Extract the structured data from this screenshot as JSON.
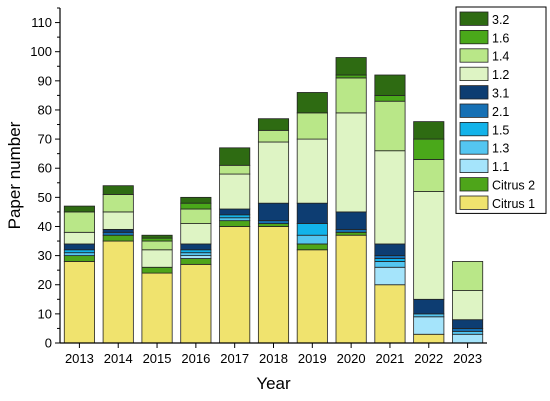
{
  "chart_data": {
    "type": "bar",
    "stacked": true,
    "categories": [
      "2013",
      "2014",
      "2015",
      "2016",
      "2017",
      "2018",
      "2019",
      "2020",
      "2021",
      "2022",
      "2023"
    ],
    "xlabel": "Year",
    "ylabel": "Paper number",
    "ylim": [
      0,
      115
    ],
    "yticks": [
      0,
      10,
      20,
      30,
      40,
      50,
      60,
      70,
      80,
      90,
      100,
      110
    ],
    "grid": false,
    "legend_position": "top-right",
    "series": [
      {
        "name": "Citrus 1",
        "color": "#f0e36e",
        "values": [
          28,
          35,
          24,
          27,
          40,
          40,
          32,
          37,
          20,
          3,
          0
        ]
      },
      {
        "name": "Citrus 2",
        "color": "#4ea51a",
        "values": [
          2,
          2,
          2,
          2,
          2,
          1,
          2,
          1,
          0,
          0,
          0
        ]
      },
      {
        "name": "1.1",
        "color": "#a5e4fb",
        "values": [
          0,
          0,
          0,
          1,
          0,
          0,
          0,
          0,
          6,
          6,
          3
        ]
      },
      {
        "name": "1.3",
        "color": "#54c6f1",
        "values": [
          1,
          0,
          0,
          1,
          1,
          0,
          3,
          0,
          2,
          1,
          1
        ]
      },
      {
        "name": "1.5",
        "color": "#12b3ea",
        "values": [
          1,
          0,
          0,
          1,
          1,
          0,
          4,
          0,
          1,
          0,
          0
        ]
      },
      {
        "name": "2.1",
        "color": "#1670b4",
        "values": [
          0,
          1,
          0,
          0,
          0,
          1,
          0,
          1,
          1,
          0,
          1
        ]
      },
      {
        "name": "3.1",
        "color": "#0d3d72",
        "values": [
          2,
          1,
          0,
          2,
          2,
          6,
          7,
          6,
          4,
          5,
          3
        ]
      },
      {
        "name": "1.2",
        "color": "#def4c4",
        "values": [
          4,
          6,
          6,
          7,
          12,
          21,
          22,
          34,
          32,
          37,
          10
        ]
      },
      {
        "name": "1.4",
        "color": "#b9e788",
        "values": [
          7,
          6,
          3,
          5,
          3,
          4,
          9,
          12,
          17,
          11,
          10
        ]
      },
      {
        "name": "1.6",
        "color": "#4aa81a",
        "values": [
          0,
          0,
          1,
          2,
          0,
          0,
          0,
          1,
          2,
          7,
          0
        ]
      },
      {
        "name": "3.2",
        "color": "#2e6b12",
        "values": [
          2,
          3,
          1,
          2,
          6,
          4,
          7,
          6,
          7,
          6,
          0
        ]
      }
    ],
    "legend_order": [
      "3.2",
      "1.6",
      "1.4",
      "1.2",
      "3.1",
      "2.1",
      "1.5",
      "1.3",
      "1.1",
      "Citrus 2",
      "Citrus 1"
    ]
  }
}
